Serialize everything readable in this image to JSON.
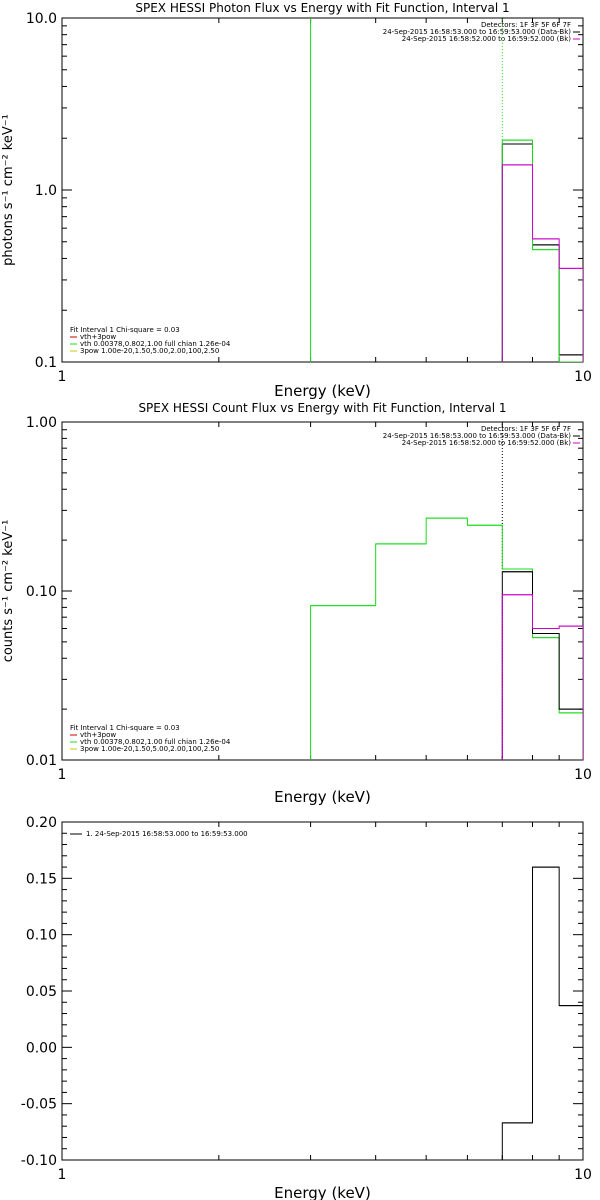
{
  "colors": {
    "black": "#000000",
    "red": "#cc0000",
    "green": "#19dd19",
    "magenta": "#cc00cc",
    "yellow": "#c8c800"
  },
  "chart_data": [
    {
      "type": "line",
      "title": "SPEX HESSI Photon Flux vs Energy with Fit Function, Interval 1",
      "xlabel": "Energy (keV)",
      "ylabel": "photons s⁻¹ cm⁻² keV⁻¹",
      "xscale": "log",
      "yscale": "log",
      "xlim": [
        1,
        10
      ],
      "ylim": [
        0.1,
        10
      ],
      "xticks": [
        "1",
        "10"
      ],
      "yticks": [
        "0.1",
        "1.0",
        "10.0"
      ],
      "header_text": [
        "Detectors: 1F 3F 5F 6F 7F",
        "24-Sep-2015 16:58:53.000 to 16:59:53.000 (Data-Bk)",
        "24-Sep-2015 16:58:52.000 to 16:59:52.000 (Bk)"
      ],
      "legend": [
        "Fit Interval  1    Chi-square = 0.03",
        "vth+3pow",
        "vth 0.00378,0.802,1.00   full chian 1.26e-04",
        "3pow 1.00e-20,1.50,5.00,2.00,100,2.50"
      ],
      "legend_location": "bottom-left",
      "series": [
        {
          "style": "green",
          "type": "vline",
          "x": 3.0,
          "y_range": [
            0.1,
            10
          ]
        },
        {
          "style": "green",
          "type": "dotted-vline",
          "x": 7.0,
          "y_range": [
            1.95,
            10
          ]
        },
        {
          "style": "magenta",
          "type": "dotted-vline",
          "x": 7.0,
          "y_range": [
            0.1,
            1.4
          ]
        },
        {
          "style": "black",
          "type": "step",
          "edges": [
            7,
            8,
            9,
            10
          ],
          "values": [
            1.85,
            0.48,
            0.11
          ]
        },
        {
          "style": "green",
          "type": "step",
          "edges": [
            7,
            8,
            9,
            10
          ],
          "values": [
            1.95,
            0.45,
            0.1
          ]
        },
        {
          "style": "magenta",
          "type": "step",
          "edges": [
            7,
            8,
            9,
            10
          ],
          "values": [
            1.4,
            0.52,
            0.35
          ]
        }
      ]
    },
    {
      "type": "line",
      "title": "SPEX HESSI Count Flux vs Energy with Fit Function, Interval 1",
      "xlabel": "Energy (keV)",
      "ylabel": "counts s⁻¹ cm⁻² keV⁻¹",
      "xscale": "log",
      "yscale": "log",
      "xlim": [
        1,
        10
      ],
      "ylim": [
        0.01,
        1.0
      ],
      "xticks": [
        "1",
        "10"
      ],
      "yticks": [
        "0.01",
        "0.10",
        "1.00"
      ],
      "header_text": [
        "Detectors: 1F 3F 5F 6F 7F",
        "24-Sep-2015 16:58:53.000 to 16:59:53.000 (Data-Bk)",
        "24-Sep-2015 16:58:52.000 to 16:59:52.000 (Bk)"
      ],
      "legend": [
        "Fit Interval  1    Chi-square = 0.03",
        "vth+3pow",
        "vth 0.00378,0.802,1.00   full chian 1.26e-04",
        "3pow 1.00e-20,1.50,5.00,2.00,100,2.50"
      ],
      "legend_location": "bottom-left",
      "series": [
        {
          "style": "black",
          "type": "dotted-vline",
          "x": 7.0,
          "y_range": [
            0.135,
            1.0
          ]
        },
        {
          "style": "magenta",
          "type": "dotted-vline",
          "x": 7.0,
          "y_range": [
            0.01,
            0.095
          ]
        },
        {
          "style": "green",
          "type": "step",
          "edges": [
            3,
            4,
            5,
            6,
            7,
            8,
            9,
            10
          ],
          "values": [
            0.082,
            0.19,
            0.27,
            0.245,
            0.135,
            0.053,
            0.019
          ]
        },
        {
          "style": "black",
          "type": "step",
          "edges": [
            7,
            8,
            9,
            10
          ],
          "values": [
            0.13,
            0.056,
            0.02
          ]
        },
        {
          "style": "magenta",
          "type": "step",
          "edges": [
            7,
            8,
            9,
            10
          ],
          "values": [
            0.095,
            0.06,
            0.062
          ]
        }
      ]
    },
    {
      "type": "line",
      "title": "",
      "xlabel": "Energy (keV)",
      "ylabel": "",
      "xscale": "log",
      "yscale": "linear",
      "xlim": [
        1,
        10
      ],
      "ylim": [
        -0.1,
        0.2
      ],
      "xticks": [
        "1",
        "10"
      ],
      "yticks": [
        "-0.10",
        "-0.05",
        "0.00",
        "0.05",
        "0.10",
        "0.15",
        "0.20"
      ],
      "legend": [
        "1. 24-Sep-2015 16:58:53.000 to 16:59:53.000"
      ],
      "legend_location": "top-left",
      "series": [
        {
          "style": "black",
          "type": "step",
          "edges": [
            7,
            8,
            9,
            10
          ],
          "values": [
            -0.067,
            0.16,
            0.037
          ]
        }
      ]
    }
  ]
}
